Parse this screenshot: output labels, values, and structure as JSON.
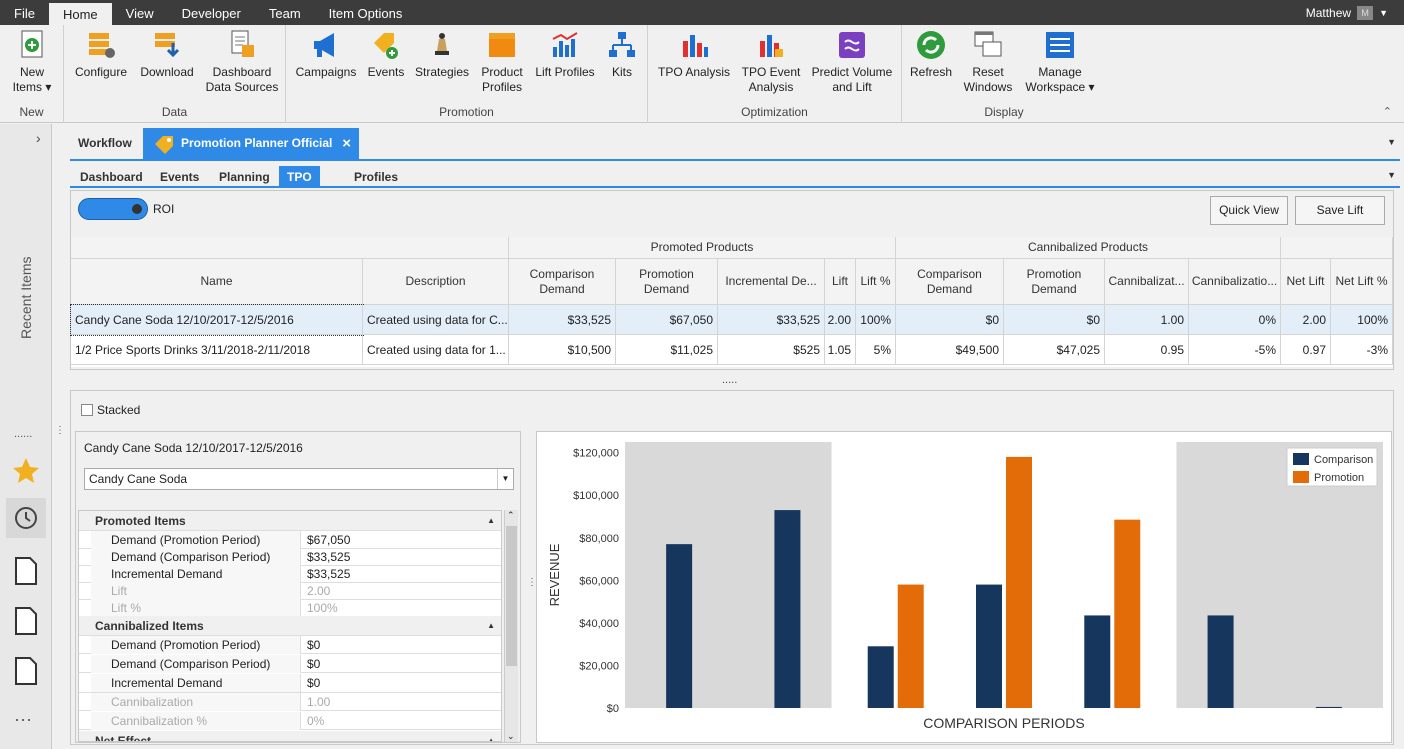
{
  "menu": {
    "items": [
      "File",
      "Home",
      "View",
      "Developer",
      "Team",
      "Item Options"
    ],
    "user": "Matthew",
    "avatar_letter": "M"
  },
  "ribbon": {
    "groups": {
      "new": "New",
      "data": "Data",
      "promotion": "Promotion",
      "optimization": "Optimization",
      "display": "Display"
    },
    "buttons": {
      "new_items": "New Items ▾",
      "configure": "Configure",
      "download": "Download",
      "dashboard_data_sources": "Dashboard Data Sources",
      "campaigns": "Campaigns",
      "events": "Events",
      "strategies": "Strategies",
      "product_profiles": "Product Profiles",
      "lift_profiles": "Lift Profiles",
      "kits": "Kits",
      "tpo_analysis": "TPO Analysis",
      "tpo_event_analysis": "TPO Event Analysis",
      "predict_volume": "Predict Volume and Lift",
      "refresh": "Refresh",
      "reset_windows": "Reset Windows",
      "manage_workspace": "Manage Workspace ▾"
    }
  },
  "left_rail": {
    "recent_items": "Recent Items",
    "dots": "......",
    "more": "···"
  },
  "doc_tabs": {
    "workflow": "Workflow",
    "active": "Promotion Planner Official",
    "close": "×"
  },
  "sub_tabs": [
    "Dashboard",
    "Events",
    "Planning",
    "TPO",
    "Profiles"
  ],
  "roi_toggle": {
    "label": "ROI"
  },
  "buttons": {
    "quick_view": "Quick View",
    "save_lift": "Save Lift"
  },
  "table": {
    "group_headers": {
      "promoted": "Promoted Products",
      "cannibalized": "Cannibalized Products"
    },
    "columns": [
      "Name",
      "Description",
      "Comparison Demand",
      "Promotion Demand",
      "Incremental De...",
      "Lift",
      "Lift %",
      "Comparison Demand",
      "Promotion Demand",
      "Cannibalizat...",
      "Cannibalizatio...",
      "Net Lift",
      "Net Lift %"
    ],
    "rows": [
      [
        "Candy Cane Soda 12/10/2017-12/5/2016",
        "Created using data for C...",
        "$33,525",
        "$67,050",
        "$33,525",
        "2.00",
        "100%",
        "$0",
        "$0",
        "1.00",
        "0%",
        "2.00",
        "100%"
      ],
      [
        "1/2 Price Sports Drinks 3/11/2018-2/11/2018",
        "Created using data for 1...",
        "$10,500",
        "$11,025",
        "$525",
        "1.05",
        "5%",
        "$49,500",
        "$47,025",
        "0.95",
        "-5%",
        "0.97",
        "-3%"
      ]
    ],
    "splitter": "....."
  },
  "lower": {
    "stacked_label": "Stacked",
    "selected_title": "Candy Cane Soda 12/10/2017-12/5/2016",
    "product_select": "Candy Cane Soda",
    "properties": [
      {
        "category": "Promoted Items"
      },
      {
        "name": "Demand (Promotion Period)",
        "value": "$67,050"
      },
      {
        "name": "Demand (Comparison Period)",
        "value": "$33,525"
      },
      {
        "name": "Incremental Demand",
        "value": "$33,525"
      },
      {
        "name": "Lift",
        "value": "2.00",
        "dim": true
      },
      {
        "name": "Lift %",
        "value": "100%",
        "dim": true
      },
      {
        "category": "Cannibalized Items"
      },
      {
        "name": "Demand (Promotion Period)",
        "value": "$0"
      },
      {
        "name": "Demand (Comparison Period)",
        "value": "$0"
      },
      {
        "name": "Incremental Demand",
        "value": "$0"
      },
      {
        "name": "Cannibalization",
        "value": "1.00",
        "dim": true
      },
      {
        "name": "Cannibalization %",
        "value": "0%",
        "dim": true
      },
      {
        "category": "Net Effect"
      }
    ]
  },
  "chart_data": {
    "type": "bar",
    "title": "",
    "xlabel": "COMPARISON PERIODS",
    "ylabel": "REVENUE",
    "ylim": [
      0,
      125000
    ],
    "yticks": [
      "$0",
      "$20,000",
      "$40,000",
      "$60,000",
      "$80,000",
      "$100,000",
      "$120,000"
    ],
    "series": [
      {
        "name": "Comparison",
        "color": "#17365d",
        "values": [
          77000,
          93000,
          29000,
          58000,
          43500,
          43500,
          500
        ]
      },
      {
        "name": "Promotion",
        "color": "#e36c09",
        "values": [
          0,
          0,
          58000,
          118000,
          88500,
          0,
          0
        ]
      }
    ],
    "legend": "top-right",
    "highlight_band": "middle-periods"
  }
}
